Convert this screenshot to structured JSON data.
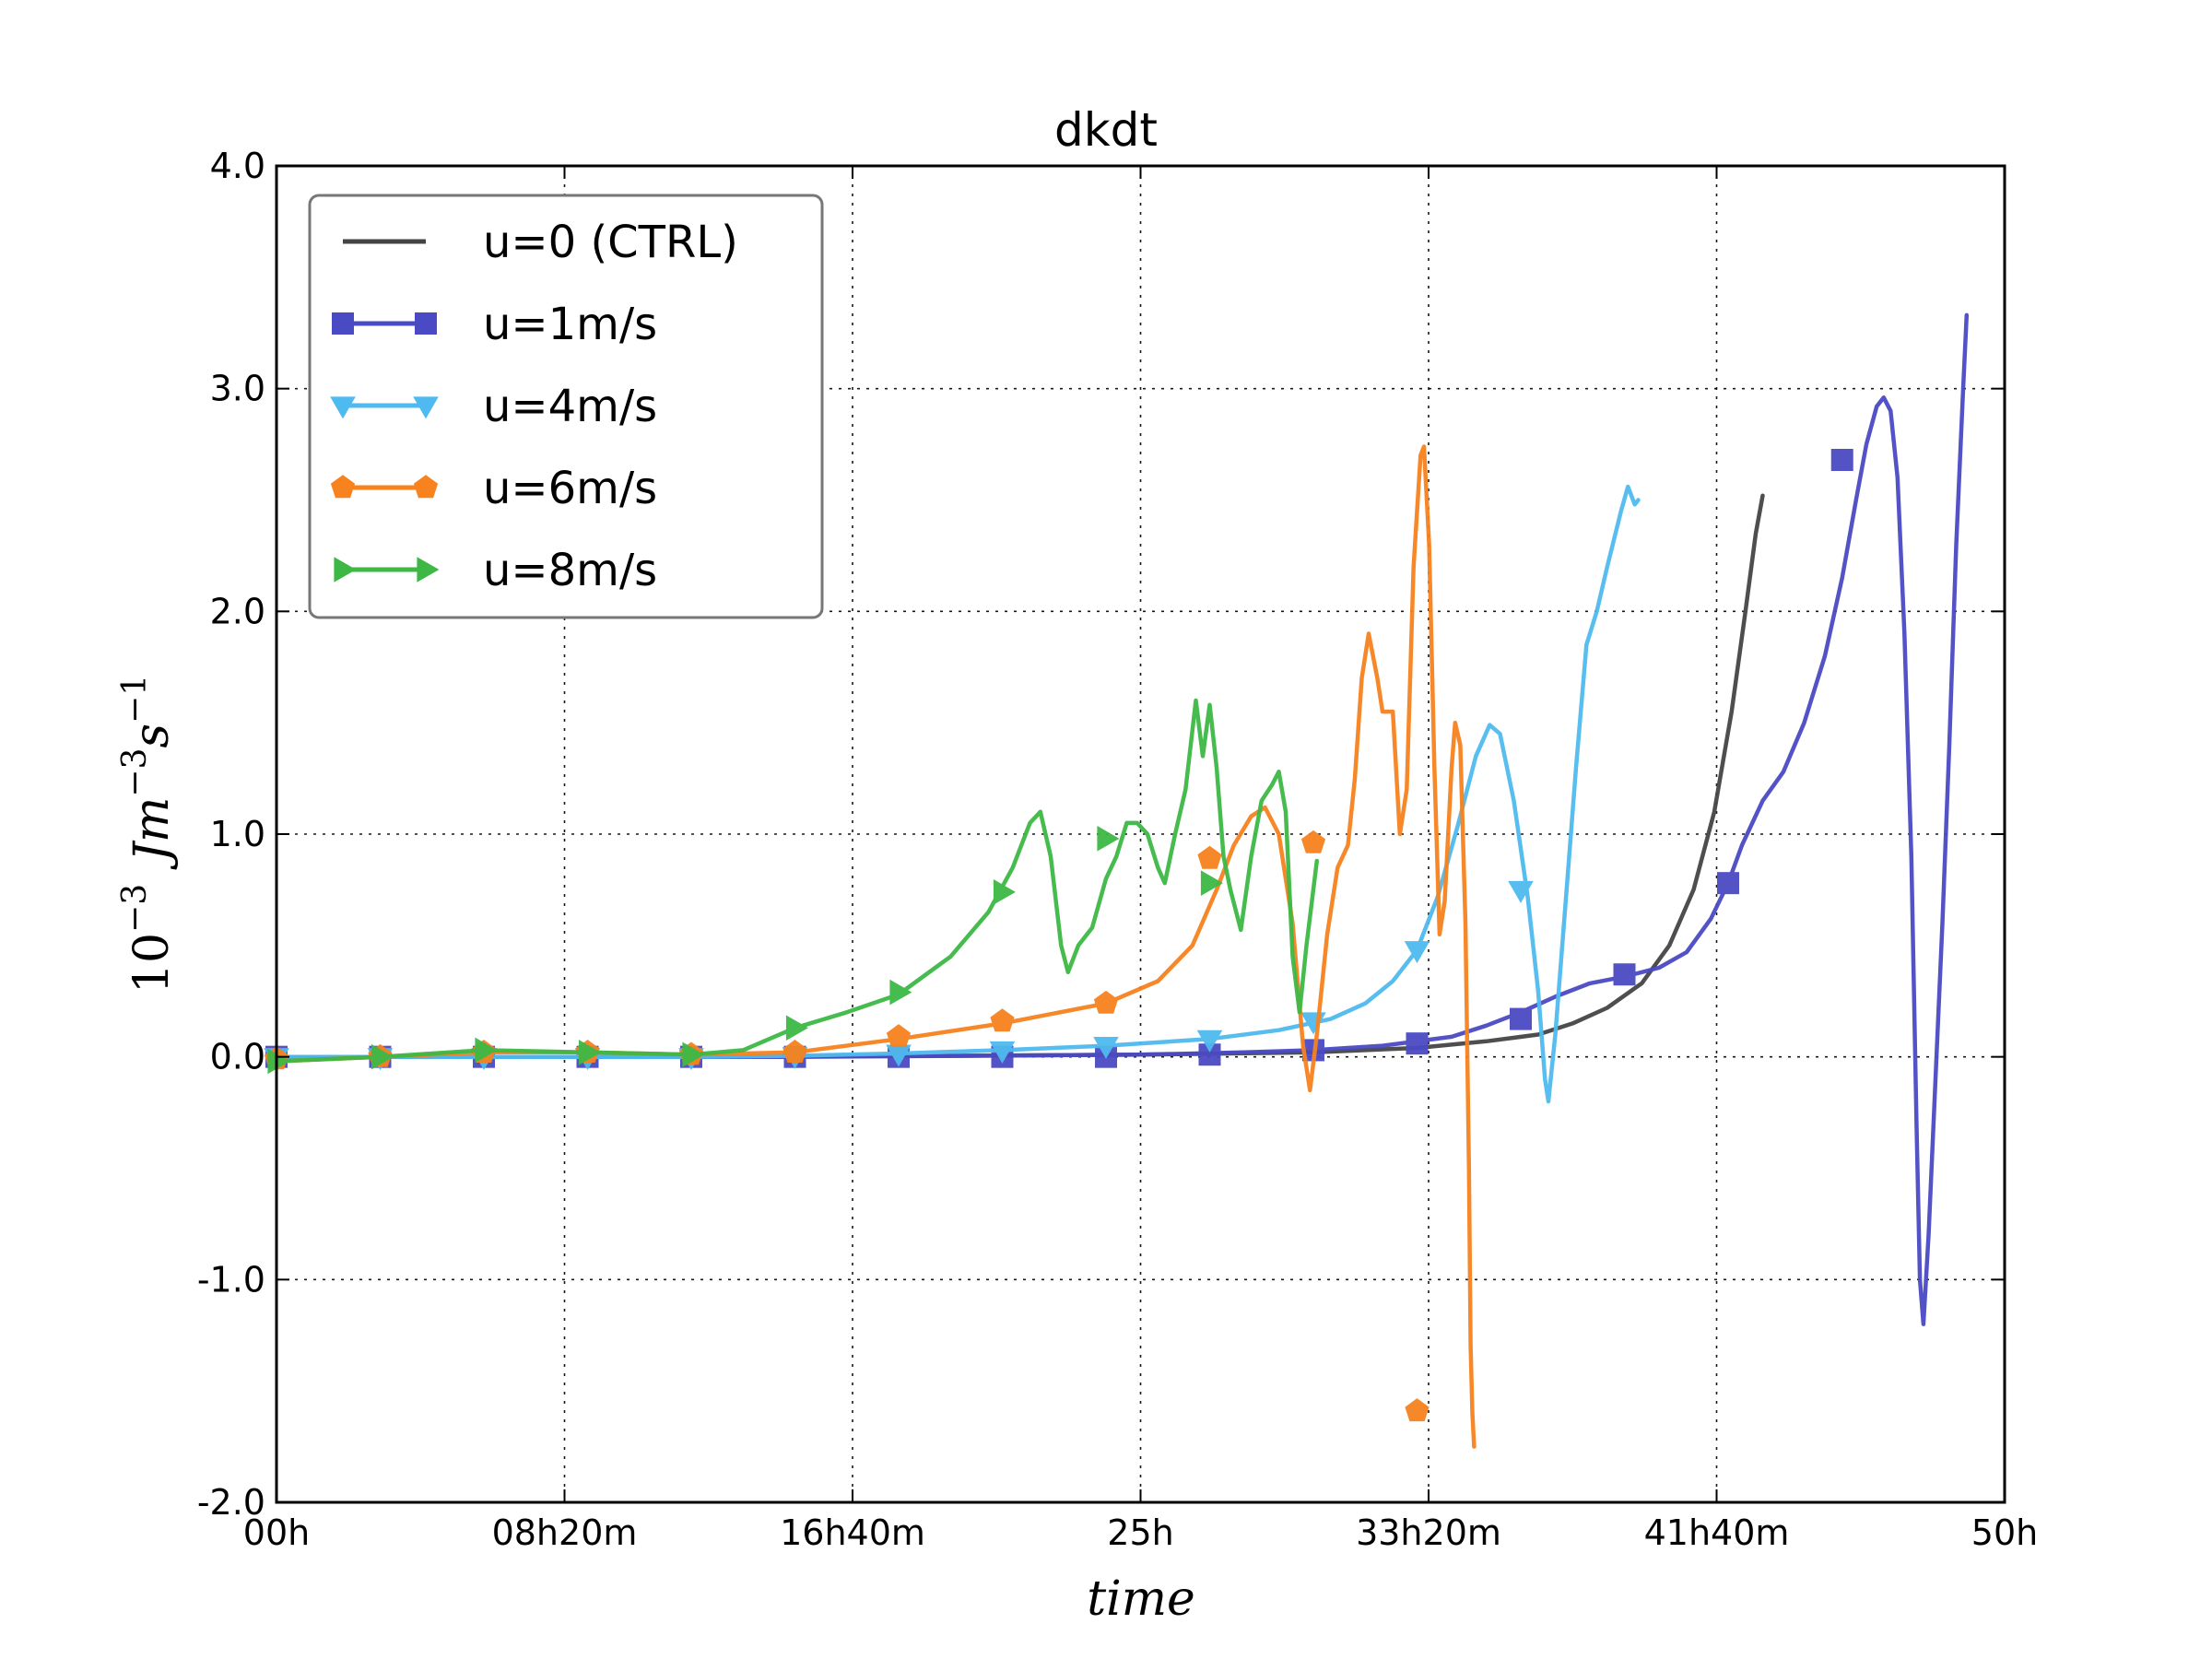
{
  "chart_data": {
    "type": "line",
    "title": "dkdt",
    "xlabel": "time",
    "ylabel": "10^{-3} Jm^{-3}s^{-1}",
    "ylabel_parts": {
      "base": "10",
      "exp1": "−3",
      "mid": "Jm",
      "exp2": "−3",
      "s": "s",
      "exp3": "−1"
    },
    "xlim_hours": [
      0,
      50
    ],
    "ylim": [
      -2.0,
      4.0
    ],
    "x_ticks": [
      {
        "h": 0,
        "label": "00h"
      },
      {
        "h": 8.3333,
        "label": "08h20m"
      },
      {
        "h": 16.6667,
        "label": "16h40m"
      },
      {
        "h": 25,
        "label": "25h"
      },
      {
        "h": 33.3333,
        "label": "33h20m"
      },
      {
        "h": 41.6667,
        "label": "41h40m"
      },
      {
        "h": 50,
        "label": "50h"
      }
    ],
    "y_ticks": [
      {
        "v": -2.0,
        "label": "-2.0"
      },
      {
        "v": -1.0,
        "label": "-1.0"
      },
      {
        "v": 0.0,
        "label": "0.0"
      },
      {
        "v": 1.0,
        "label": "1.0"
      },
      {
        "v": 2.0,
        "label": "2.0"
      },
      {
        "v": 3.0,
        "label": "3.0"
      },
      {
        "v": 4.0,
        "label": "4.0"
      }
    ],
    "grid": true,
    "legend_position": "top-left",
    "series": [
      {
        "name": "u=0 (CTRL)",
        "color": "#444444",
        "marker": "none",
        "points": [
          [
            0,
            0
          ],
          [
            10,
            0
          ],
          [
            20,
            0.005
          ],
          [
            25,
            0.01
          ],
          [
            30,
            0.02
          ],
          [
            33,
            0.04
          ],
          [
            35,
            0.07
          ],
          [
            36.5,
            0.1
          ],
          [
            37.5,
            0.15
          ],
          [
            38.5,
            0.22
          ],
          [
            39.5,
            0.33
          ],
          [
            40.3,
            0.5
          ],
          [
            41,
            0.75
          ],
          [
            41.6,
            1.1
          ],
          [
            42.1,
            1.55
          ],
          [
            42.5,
            2.0
          ],
          [
            42.8,
            2.35
          ],
          [
            43.0,
            2.52
          ]
        ],
        "markers": []
      },
      {
        "name": "u=1m/s",
        "color": "#4a4ac4",
        "marker": "square",
        "points": [
          [
            0,
            0
          ],
          [
            5,
            0
          ],
          [
            10,
            0
          ],
          [
            15,
            0
          ],
          [
            20,
            0.005
          ],
          [
            25,
            0.01
          ],
          [
            28,
            0.02
          ],
          [
            30,
            0.03
          ],
          [
            32,
            0.05
          ],
          [
            34,
            0.09
          ],
          [
            35,
            0.14
          ],
          [
            36,
            0.2
          ],
          [
            37,
            0.27
          ],
          [
            38,
            0.33
          ],
          [
            39,
            0.36
          ],
          [
            40,
            0.4
          ],
          [
            40.8,
            0.47
          ],
          [
            41.5,
            0.62
          ],
          [
            42,
            0.78
          ],
          [
            42.4,
            0.95
          ],
          [
            43,
            1.15
          ],
          [
            43.6,
            1.28
          ],
          [
            44.2,
            1.5
          ],
          [
            44.8,
            1.8
          ],
          [
            45.3,
            2.15
          ],
          [
            45.7,
            2.5
          ],
          [
            46,
            2.75
          ],
          [
            46.3,
            2.92
          ],
          [
            46.5,
            2.96
          ],
          [
            46.7,
            2.9
          ],
          [
            46.9,
            2.6
          ],
          [
            47.1,
            1.9
          ],
          [
            47.3,
            0.9
          ],
          [
            47.45,
            -0.3
          ],
          [
            47.55,
            -1.0
          ],
          [
            47.65,
            -1.2
          ],
          [
            47.8,
            -0.8
          ],
          [
            48,
            -0.1
          ],
          [
            48.2,
            0.6
          ],
          [
            48.4,
            1.4
          ],
          [
            48.6,
            2.3
          ],
          [
            48.8,
            3.0
          ],
          [
            48.9,
            3.33
          ]
        ],
        "markers": [
          [
            0,
            0
          ],
          [
            3,
            0
          ],
          [
            6,
            0
          ],
          [
            9,
            0
          ],
          [
            12,
            0
          ],
          [
            15,
            0
          ],
          [
            18,
            0
          ],
          [
            21,
            0
          ],
          [
            24,
            0
          ],
          [
            27,
            0.01
          ],
          [
            30,
            0.03
          ],
          [
            33,
            0.06
          ],
          [
            36,
            0.17
          ],
          [
            39,
            0.37
          ],
          [
            42,
            0.78
          ],
          [
            45.3,
            2.68
          ]
        ]
      },
      {
        "name": "u=4m/s",
        "color": "#4fbaef",
        "marker": "triangle-down",
        "points": [
          [
            0,
            0
          ],
          [
            6,
            0
          ],
          [
            12,
            0
          ],
          [
            15,
            0.005
          ],
          [
            18,
            0.015
          ],
          [
            21,
            0.03
          ],
          [
            24,
            0.05
          ],
          [
            27,
            0.08
          ],
          [
            29,
            0.12
          ],
          [
            30.5,
            0.17
          ],
          [
            31.5,
            0.24
          ],
          [
            32.3,
            0.34
          ],
          [
            33,
            0.48
          ],
          [
            33.6,
            0.72
          ],
          [
            34.2,
            1.05
          ],
          [
            34.7,
            1.35
          ],
          [
            35.1,
            1.49
          ],
          [
            35.4,
            1.45
          ],
          [
            35.8,
            1.15
          ],
          [
            36.2,
            0.72
          ],
          [
            36.5,
            0.3
          ],
          [
            36.7,
            -0.1
          ],
          [
            36.8,
            -0.2
          ],
          [
            37,
            0.1
          ],
          [
            37.3,
            0.7
          ],
          [
            37.6,
            1.3
          ],
          [
            37.9,
            1.85
          ],
          [
            38.2,
            2.0
          ],
          [
            38.5,
            2.2
          ],
          [
            38.9,
            2.45
          ],
          [
            39.1,
            2.56
          ],
          [
            39.3,
            2.48
          ],
          [
            39.4,
            2.5
          ]
        ],
        "markers": [
          [
            0,
            0
          ],
          [
            3,
            0
          ],
          [
            6,
            0
          ],
          [
            9,
            0
          ],
          [
            12,
            0
          ],
          [
            15,
            0.005
          ],
          [
            18,
            0.015
          ],
          [
            21,
            0.03
          ],
          [
            24,
            0.05
          ],
          [
            27,
            0.08
          ],
          [
            30,
            0.16
          ],
          [
            33,
            0.48
          ],
          [
            36,
            0.75
          ]
        ]
      },
      {
        "name": "u=6m/s",
        "color": "#f7821e",
        "marker": "pentagon",
        "points": [
          [
            0,
            -0.02
          ],
          [
            3,
            0
          ],
          [
            6,
            0.02
          ],
          [
            9,
            0.02
          ],
          [
            12,
            0.01
          ],
          [
            15,
            0.02
          ],
          [
            18,
            0.08
          ],
          [
            21,
            0.15
          ],
          [
            24,
            0.24
          ],
          [
            25.5,
            0.34
          ],
          [
            26.5,
            0.5
          ],
          [
            27.2,
            0.75
          ],
          [
            27.7,
            0.95
          ],
          [
            28.2,
            1.08
          ],
          [
            28.6,
            1.12
          ],
          [
            29,
            1.0
          ],
          [
            29.4,
            0.6
          ],
          [
            29.7,
            0.05
          ],
          [
            29.9,
            -0.15
          ],
          [
            30.1,
            0.1
          ],
          [
            30.4,
            0.55
          ],
          [
            30.7,
            0.85
          ],
          [
            31,
            0.95
          ],
          [
            31.2,
            1.25
          ],
          [
            31.4,
            1.7
          ],
          [
            31.6,
            1.9
          ],
          [
            31.85,
            1.7
          ],
          [
            32,
            1.55
          ],
          [
            32.3,
            1.55
          ],
          [
            32.5,
            1.0
          ],
          [
            32.7,
            1.2
          ],
          [
            32.9,
            2.2
          ],
          [
            33.1,
            2.7
          ],
          [
            33.2,
            2.74
          ],
          [
            33.35,
            2.3
          ],
          [
            33.5,
            1.3
          ],
          [
            33.65,
            0.55
          ],
          [
            33.8,
            0.7
          ],
          [
            34.0,
            1.3
          ],
          [
            34.1,
            1.5
          ],
          [
            34.25,
            1.4
          ],
          [
            34.4,
            0.6
          ],
          [
            34.5,
            -0.5
          ],
          [
            34.55,
            -1.3
          ],
          [
            34.6,
            -1.6
          ],
          [
            34.65,
            -1.75
          ]
        ],
        "markers": [
          [
            0,
            -0.01
          ],
          [
            3,
            0
          ],
          [
            6,
            0.02
          ],
          [
            9,
            0.02
          ],
          [
            12,
            0.01
          ],
          [
            15,
            0.02
          ],
          [
            18,
            0.09
          ],
          [
            21,
            0.16
          ],
          [
            24,
            0.24
          ],
          [
            27,
            0.89
          ],
          [
            30,
            0.96
          ],
          [
            33,
            -1.59
          ]
        ]
      },
      {
        "name": "u=8m/s",
        "color": "#3db845",
        "marker": "triangle-right",
        "points": [
          [
            0,
            -0.02
          ],
          [
            3,
            0
          ],
          [
            6,
            0.03
          ],
          [
            9,
            0.02
          ],
          [
            12,
            0.01
          ],
          [
            13.5,
            0.03
          ],
          [
            15,
            0.13
          ],
          [
            16.5,
            0.2
          ],
          [
            18,
            0.28
          ],
          [
            19.5,
            0.45
          ],
          [
            20.6,
            0.65
          ],
          [
            21.3,
            0.85
          ],
          [
            21.8,
            1.05
          ],
          [
            22.1,
            1.1
          ],
          [
            22.4,
            0.9
          ],
          [
            22.7,
            0.5
          ],
          [
            22.9,
            0.38
          ],
          [
            23.2,
            0.5
          ],
          [
            23.6,
            0.58
          ],
          [
            24,
            0.8
          ],
          [
            24.3,
            0.9
          ],
          [
            24.6,
            1.05
          ],
          [
            24.9,
            1.05
          ],
          [
            25.2,
            1.0
          ],
          [
            25.5,
            0.85
          ],
          [
            25.7,
            0.78
          ],
          [
            26,
            1.0
          ],
          [
            26.3,
            1.2
          ],
          [
            26.6,
            1.6
          ],
          [
            26.8,
            1.35
          ],
          [
            27,
            1.58
          ],
          [
            27.2,
            1.3
          ],
          [
            27.4,
            0.9
          ],
          [
            27.6,
            0.75
          ],
          [
            27.9,
            0.57
          ],
          [
            28.2,
            0.9
          ],
          [
            28.5,
            1.15
          ],
          [
            28.8,
            1.22
          ],
          [
            29,
            1.28
          ],
          [
            29.2,
            1.1
          ],
          [
            29.4,
            0.45
          ],
          [
            29.6,
            0.2
          ],
          [
            29.8,
            0.5
          ],
          [
            30.1,
            0.88
          ]
        ],
        "markers": [
          [
            0,
            -0.02
          ],
          [
            3,
            0
          ],
          [
            6,
            0.03
          ],
          [
            9,
            0.02
          ],
          [
            12,
            0.01
          ],
          [
            15,
            0.13
          ],
          [
            18,
            0.29
          ],
          [
            21,
            0.74
          ],
          [
            24,
            0.98
          ],
          [
            27,
            0.78
          ]
        ]
      }
    ]
  }
}
